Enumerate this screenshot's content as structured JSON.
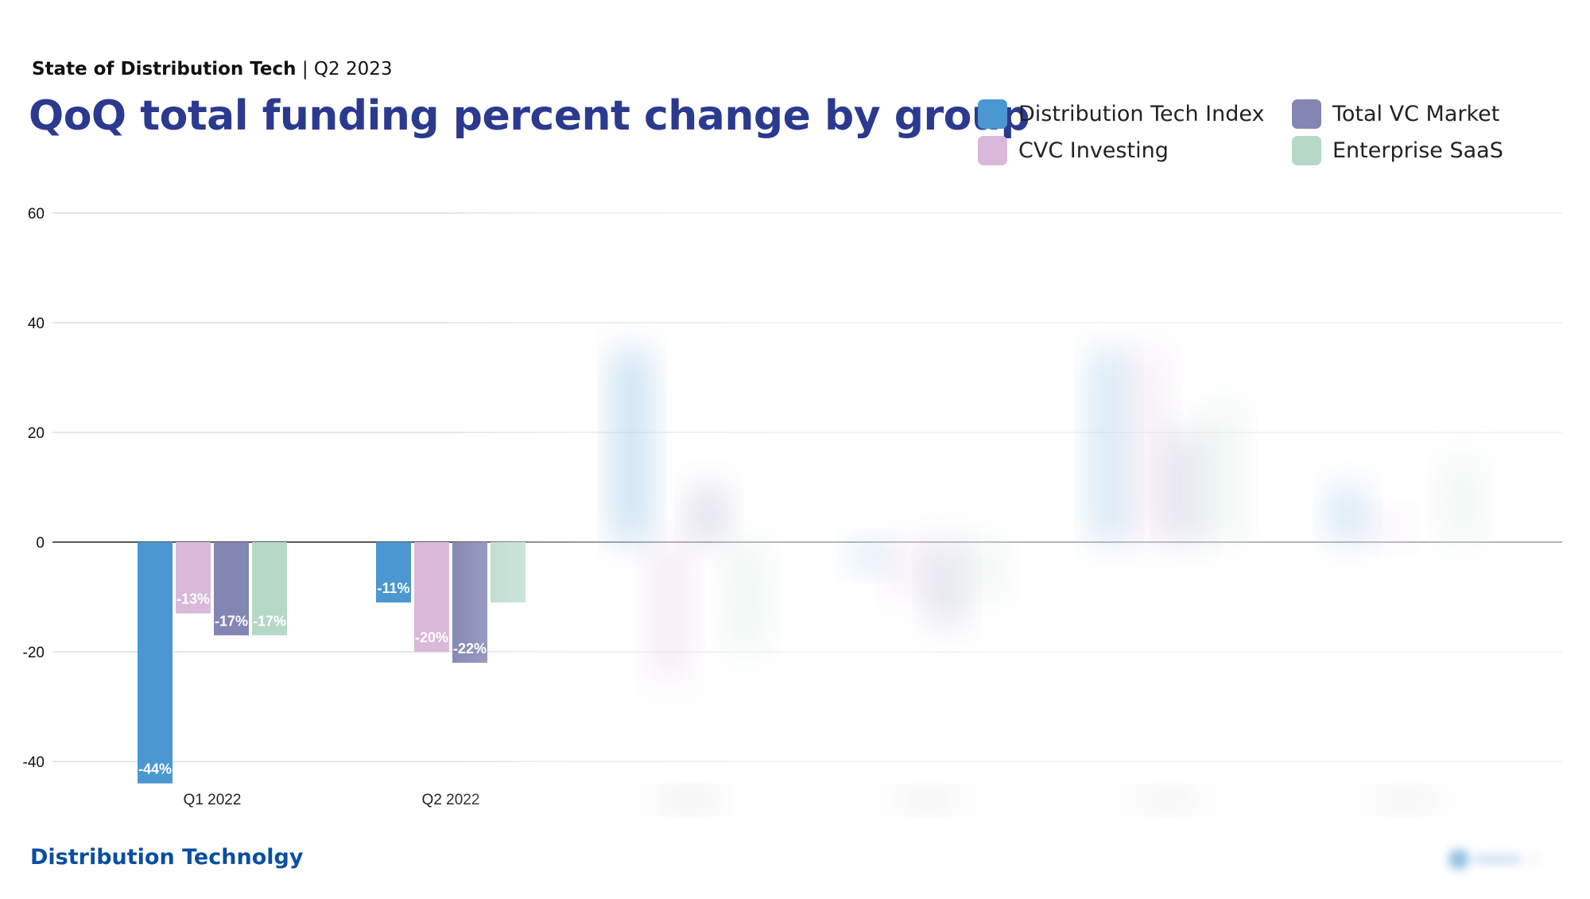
{
  "header": {
    "kicker_bold": "State of Distribution Tech",
    "kicker_rest": " | Q2 2023",
    "title": "QoQ total funding percent change by group"
  },
  "footer": {
    "brand": "Distribution Technolgy"
  },
  "colors": {
    "dist_tech": "#4a97d1",
    "total_vc": "#8386b3",
    "cvc": "#d9b8da",
    "saas": "#b5d8c7",
    "title": "#2b3a8f"
  },
  "chart_data": {
    "type": "bar",
    "title": "QoQ total funding percent change by group",
    "categories": [
      "Q1 2022",
      "Q2 2022",
      "Q3 2022",
      "Q4 2022",
      "Q1 2023",
      "Q2 2023"
    ],
    "yticks": [
      60,
      40,
      20,
      0,
      -20,
      -40
    ],
    "ylim": [
      -45,
      60
    ],
    "legend_position": "top-right",
    "grid": true,
    "series": [
      {
        "name": "Distribution Tech Index",
        "color": "#4a97d1",
        "values": [
          -44,
          -11,
          35,
          -5,
          35,
          10
        ],
        "labels": [
          "-44%",
          "-11%",
          "",
          "",
          "",
          ""
        ]
      },
      {
        "name": "CVC Investing",
        "color": "#d9b8da",
        "values": [
          -13,
          -20,
          -25,
          -10,
          35,
          5
        ],
        "labels": [
          "-13%",
          "-20%",
          "",
          "",
          "",
          ""
        ]
      },
      {
        "name": "Total VC Market",
        "color": "#8386b3",
        "values": [
          -17,
          -22,
          10,
          -15,
          20,
          0
        ],
        "labels": [
          "-17%",
          "-22%",
          "",
          "",
          "",
          ""
        ]
      },
      {
        "name": "Enterprise SaaS",
        "color": "#b5d8c7",
        "values": [
          -17,
          -11,
          -20,
          -10,
          25,
          15
        ],
        "labels": [
          "-17%",
          "",
          "",
          "",
          "",
          ""
        ]
      }
    ],
    "legend_order": [
      "Distribution Tech Index",
      "Total VC Market",
      "CVC Investing",
      "Enterprise SaaS"
    ]
  }
}
